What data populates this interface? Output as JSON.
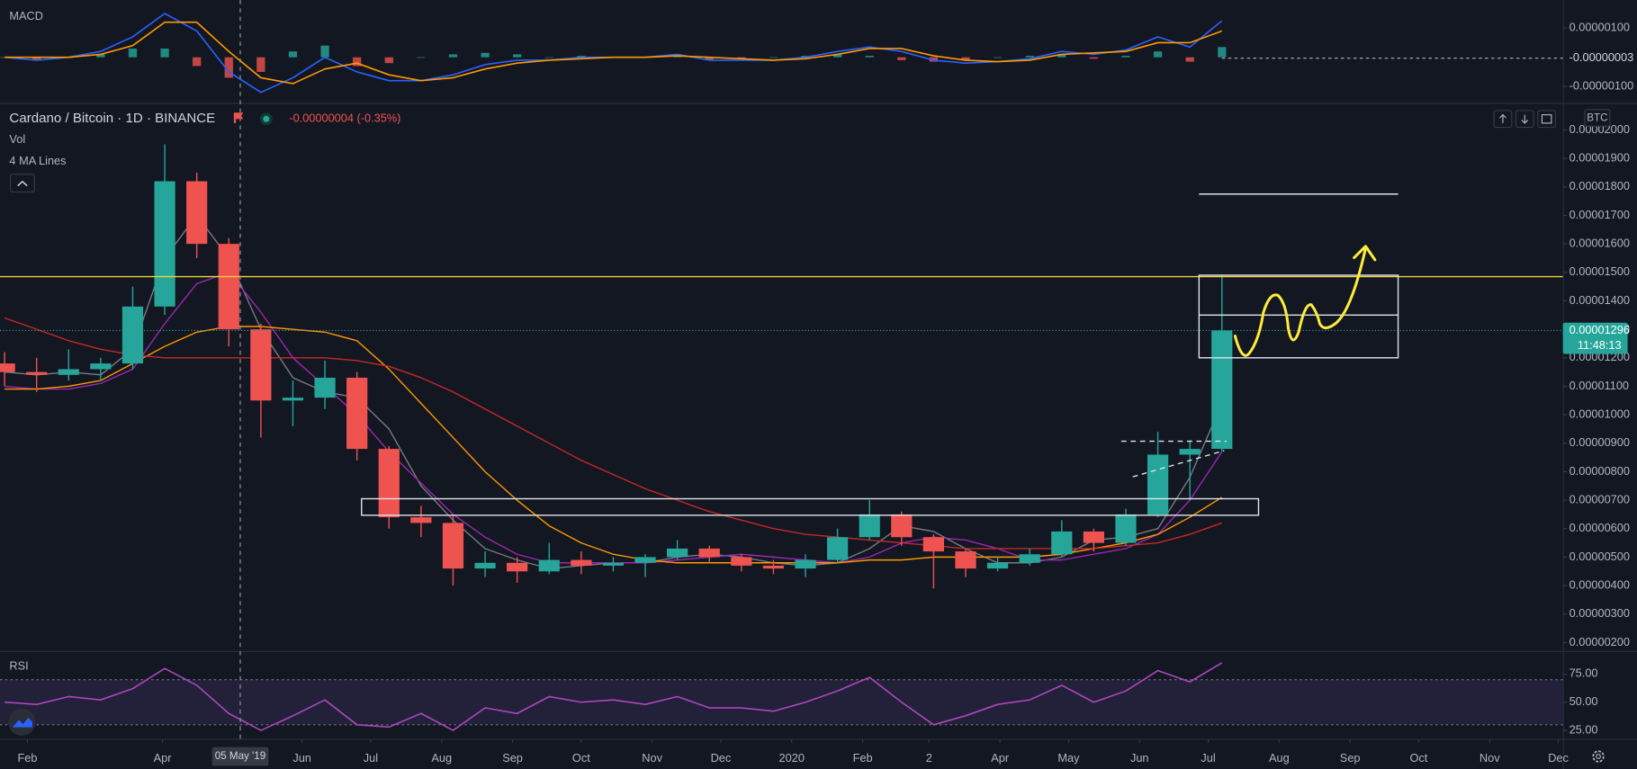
{
  "chart_data": [
    {
      "type": "line",
      "title": "MACD",
      "x": [
        -10,
        4,
        18,
        32,
        46,
        60,
        74,
        88,
        102,
        116,
        130,
        144,
        158,
        172,
        186,
        200,
        214,
        228,
        242,
        256,
        270,
        284,
        298,
        312,
        326,
        340,
        354,
        368,
        382,
        396,
        410,
        424,
        438,
        452,
        466,
        480,
        494,
        508,
        522
      ],
      "series": [
        {
          "color": "#2962ff",
          "values": [
            0,
            -1e-07,
            0,
            2e-07,
            7e-07,
            1.5e-06,
            9e-07,
            -5e-07,
            -1.2e-06,
            -7e-07,
            0,
            -5e-07,
            -8e-07,
            -8e-07,
            -6e-07,
            -2.5e-07,
            -1e-07,
            -1e-07,
            0,
            0,
            0,
            1e-07,
            -1e-07,
            -1e-07,
            -1e-07,
            0,
            2e-07,
            3.5e-07,
            2e-07,
            -1e-07,
            -2e-07,
            -1.5e-07,
            -5e-08,
            2e-07,
            1e-07,
            2.5e-07,
            7e-07,
            3.5e-07,
            1.25e-06
          ]
        },
        {
          "color": "#ff9800",
          "values": [
            0,
            0,
            0,
            1e-07,
            4e-07,
            1.2e-06,
            1.2e-06,
            2e-07,
            -7e-07,
            -9e-07,
            -4e-07,
            -2e-07,
            -6e-07,
            -8e-07,
            -7e-07,
            -4e-07,
            -2e-07,
            -1e-07,
            -5e-08,
            0,
            0,
            5e-08,
            0,
            -5e-08,
            -1e-07,
            -5e-08,
            1e-07,
            3e-07,
            3e-07,
            5e-08,
            -1e-07,
            -1.5e-07,
            -1e-07,
            1e-07,
            1.5e-07,
            2e-07,
            5e-07,
            5e-07,
            9e-07
          ]
        }
      ],
      "histogram": {
        "up_color": "#26a69a",
        "down_color": "#ef5350",
        "values": [
          0,
          -1e-07,
          0,
          1e-07,
          3e-07,
          3e-07,
          -3e-07,
          -7e-07,
          -5e-07,
          2e-07,
          4e-07,
          -3e-07,
          -2e-07,
          0,
          1e-07,
          1.5e-07,
          1e-07,
          0,
          5e-08,
          0,
          0,
          5e-08,
          -1e-07,
          -5e-08,
          0,
          5e-08,
          1e-07,
          5e-08,
          -1e-07,
          -1.5e-07,
          -1e-07,
          0,
          5e-08,
          1e-07,
          -5e-08,
          5e-08,
          2e-07,
          -1.5e-07,
          3.5e-07
        ]
      },
      "ylim": [
        -1.54e-06,
        1.96e-06
      ],
      "yticks": [
        {
          "value": 1e-06,
          "label": "0.00000100"
        },
        {
          "value": -1e-06,
          "label": "-0.00000100"
        }
      ],
      "last_label": {
        "value": -3e-08,
        "label": "-0.00000003"
      }
    },
    {
      "type": "candlestick",
      "title": "Cardano / Bitcoin · 1D · BINANCE",
      "change_label": "-0.00000004 (-0.35%)",
      "volume_label": "Vol",
      "ma_label": "4 MA Lines",
      "currency": "BTC",
      "last_price": 1.296e-05,
      "countdown": "11:48:13",
      "up_color": "#26a69a",
      "down_color": "#ef5350",
      "x": [
        -10,
        4,
        18,
        32,
        46,
        60,
        74,
        88,
        102,
        116,
        130,
        144,
        158,
        172,
        186,
        200,
        214,
        228,
        242,
        256,
        270,
        284,
        298,
        312,
        326,
        340,
        354,
        368,
        382,
        396,
        410,
        424,
        438,
        452,
        466,
        480,
        494,
        508,
        522
      ],
      "open": [
        1.18e-05,
        1.15e-05,
        1.14e-05,
        1.16e-05,
        1.18e-05,
        1.38e-05,
        1.82e-05,
        1.6e-05,
        1.3e-05,
        1.05e-05,
        1.06e-05,
        1.13e-05,
        8.8e-06,
        6.4e-06,
        6.2e-06,
        4.6e-06,
        4.8e-06,
        4.5e-06,
        4.9e-06,
        4.7e-06,
        4.8e-06,
        5e-06,
        5.3e-06,
        5e-06,
        4.7e-06,
        4.6e-06,
        4.9e-06,
        5.7e-06,
        6.5e-06,
        5.7e-06,
        5.2e-06,
        4.6e-06,
        4.8e-06,
        5.1e-06,
        5.9e-06,
        5.5e-06,
        6.5e-06,
        8.6e-06,
        8.8e-06
      ],
      "high": [
        1.22e-05,
        1.2e-05,
        1.23e-05,
        1.2e-05,
        1.45e-05,
        1.95e-05,
        1.85e-05,
        1.62e-05,
        1.32e-05,
        1.12e-05,
        1.19e-05,
        1.15e-05,
        8.9e-06,
        6.8e-06,
        6.5e-06,
        5.2e-06,
        5e-06,
        5.5e-06,
        5.2e-06,
        5e-06,
        5.1e-06,
        5.6e-06,
        5.4e-06,
        5.1e-06,
        4.9e-06,
        5.1e-06,
        6e-06,
        7e-06,
        6.6e-06,
        5.8e-06,
        5.3e-06,
        5e-06,
        5.3e-06,
        6.3e-06,
        6e-06,
        6.7e-06,
        9.4e-06,
        9.1e-06,
        1.49e-05
      ],
      "low": [
        1.1e-05,
        1.08e-05,
        1.12e-05,
        1.12e-05,
        1.16e-05,
        1.35e-05,
        1.55e-05,
        1.24e-05,
        9.2e-06,
        9.6e-06,
        1.02e-05,
        8.4e-06,
        6e-06,
        5.7e-06,
        4e-06,
        4.3e-06,
        4.1e-06,
        4.4e-06,
        4.4e-06,
        4.5e-06,
        4.3e-06,
        4.9e-06,
        4.8e-06,
        4.5e-06,
        4.4e-06,
        4.3e-06,
        4.8e-06,
        5.6e-06,
        5.4e-06,
        3.9e-06,
        4.3e-06,
        4.5e-06,
        4.7e-06,
        5e-06,
        5.2e-06,
        5.4e-06,
        6.4e-06,
        7e-06,
        8.7e-06
      ],
      "close": [
        1.15e-05,
        1.14e-05,
        1.16e-05,
        1.18e-05,
        1.38e-05,
        1.82e-05,
        1.6e-05,
        1.3e-05,
        1.05e-05,
        1.06e-05,
        1.13e-05,
        8.8e-06,
        6.4e-06,
        6.2e-06,
        4.6e-06,
        4.8e-06,
        4.5e-06,
        4.9e-06,
        4.7e-06,
        4.8e-06,
        5e-06,
        5.3e-06,
        5e-06,
        4.7e-06,
        4.6e-06,
        4.9e-06,
        5.7e-06,
        6.5e-06,
        5.7e-06,
        5.2e-06,
        4.6e-06,
        4.8e-06,
        5.1e-06,
        5.9e-06,
        5.5e-06,
        6.5e-06,
        8.6e-06,
        8.8e-06,
        1.296e-05
      ],
      "ma_series": [
        {
          "color": "#787b86",
          "values": [
            1.15e-05,
            1.14e-05,
            1.15e-05,
            1.14e-05,
            1.23e-05,
            1.55e-05,
            1.7e-05,
            1.55e-05,
            1.3e-05,
            1.13e-05,
            1.08e-05,
            1.06e-05,
            9.5e-06,
            7.5e-06,
            6.3e-06,
            5.3e-06,
            4.9e-06,
            4.6e-06,
            4.7e-06,
            4.8e-06,
            4.8e-06,
            5e-06,
            5.1e-06,
            5e-06,
            4.8e-06,
            4.7e-06,
            4.8e-06,
            5.3e-06,
            6.1e-06,
            5.9e-06,
            5.3e-06,
            4.8e-06,
            4.8e-06,
            5e-06,
            5.6e-06,
            5.7e-06,
            6e-06,
            7.8e-06,
            1.04e-05
          ]
        },
        {
          "color": "#9c27b0",
          "values": [
            1.1e-05,
            1.09e-05,
            1.09e-05,
            1.11e-05,
            1.16e-05,
            1.32e-05,
            1.46e-05,
            1.5e-05,
            1.36e-05,
            1.2e-05,
            1.1e-05,
            1e-05,
            8.7e-06,
            7.6e-06,
            6.5e-06,
            5.7e-06,
            5.1e-06,
            4.8e-06,
            4.8e-06,
            4.8e-06,
            4.8e-06,
            4.9e-06,
            5e-06,
            5.1e-06,
            5e-06,
            4.9e-06,
            4.8e-06,
            5e-06,
            5.5e-06,
            5.7e-06,
            5.6e-06,
            5.3e-06,
            4.9e-06,
            4.9e-06,
            5.1e-06,
            5.3e-06,
            5.8e-06,
            7e-06,
            8.7e-06
          ]
        },
        {
          "color": "#ff9800",
          "values": [
            1.09e-05,
            1.09e-05,
            1.1e-05,
            1.12e-05,
            1.18e-05,
            1.24e-05,
            1.29e-05,
            1.31e-05,
            1.31e-05,
            1.3e-05,
            1.29e-05,
            1.26e-05,
            1.16e-05,
            1.04e-05,
            9.2e-06,
            8e-06,
            7e-06,
            6.1e-06,
            5.5e-06,
            5.1e-06,
            4.9e-06,
            4.8e-06,
            4.8e-06,
            4.8e-06,
            4.8e-06,
            4.8e-06,
            4.8e-06,
            4.9e-06,
            4.9e-06,
            5e-06,
            5e-06,
            5e-06,
            5e-06,
            5.1e-06,
            5.3e-06,
            5.5e-06,
            5.8e-06,
            6.4e-06,
            7.1e-06
          ]
        },
        {
          "color": "#c62828",
          "values": [
            1.34e-05,
            1.3e-05,
            1.26e-05,
            1.23e-05,
            1.21e-05,
            1.2e-05,
            1.2e-05,
            1.2e-05,
            1.2e-05,
            1.2e-05,
            1.2e-05,
            1.19e-05,
            1.17e-05,
            1.13e-05,
            1.08e-05,
            1.02e-05,
            9.6e-06,
            9e-06,
            8.4e-06,
            7.9e-06,
            7.4e-06,
            7e-06,
            6.6e-06,
            6.3e-06,
            6e-06,
            5.8e-06,
            5.7e-06,
            5.6e-06,
            5.5e-06,
            5.4e-06,
            5.3e-06,
            5.3e-06,
            5.3e-06,
            5.3e-06,
            5.3e-06,
            5.4e-06,
            5.5e-06,
            5.8e-06,
            6.2e-06
          ]
        }
      ],
      "hlines": [
        {
          "value": 1.485e-05,
          "color": "#f0d43a"
        }
      ],
      "boxes": [
        {
          "x": [
            146,
            538
          ],
          "y": [
            6.47e-06,
            7.05e-06
          ]
        },
        {
          "x": [
            512,
            599
          ],
          "y": [
            1.2e-05,
            1.49e-05
          ]
        }
      ],
      "segments": [
        {
          "x": [
            512,
            599
          ],
          "y": [
            1.35e-05,
            1.35e-05
          ],
          "dashed": false
        },
        {
          "x": [
            512,
            599
          ],
          "y": [
            1.775e-05,
            1.775e-05
          ],
          "dashed": false
        },
        {
          "x": [
            478,
            524
          ],
          "y": [
            9.07e-06,
            9.07e-06
          ],
          "dashed": true
        },
        {
          "x": [
            483,
            523
          ],
          "y": [
            7.82e-06,
            8.74e-06
          ],
          "dashed": true
        }
      ],
      "ylim": [
        1.7e-06,
        2.09e-05
      ],
      "yticks": [
        {
          "value": 2e-06,
          "label": "0.00000200"
        },
        {
          "value": 3e-06,
          "label": "0.00000300"
        },
        {
          "value": 4e-06,
          "label": "0.00000400"
        },
        {
          "value": 5e-06,
          "label": "0.00000500"
        },
        {
          "value": 6e-06,
          "label": "0.00000600"
        },
        {
          "value": 7e-06,
          "label": "0.00000700"
        },
        {
          "value": 8e-06,
          "label": "0.00000800"
        },
        {
          "value": 9e-06,
          "label": "0.00000900"
        },
        {
          "value": 1e-05,
          "label": "0.00001000"
        },
        {
          "value": 1.1e-05,
          "label": "0.00001100"
        },
        {
          "value": 1.2e-05,
          "label": "0.00001200"
        },
        {
          "value": 1.3e-05,
          "label": "0.00001300"
        },
        {
          "value": 1.4e-05,
          "label": "0.00001400"
        },
        {
          "value": 1.5e-05,
          "label": "0.00001500"
        },
        {
          "value": 1.6e-05,
          "label": "0.00001600"
        },
        {
          "value": 1.7e-05,
          "label": "0.00001700"
        },
        {
          "value": 1.8e-05,
          "label": "0.00001800"
        },
        {
          "value": 1.9e-05,
          "label": "0.00001900"
        },
        {
          "value": 2e-05,
          "label": "0.00002000"
        }
      ],
      "xlim": [
        -12,
        671
      ],
      "xticks": [
        {
          "value": 0,
          "label": "Feb"
        },
        {
          "value": 59,
          "label": "Apr"
        },
        {
          "value": 120,
          "label": "Jun"
        },
        {
          "value": 150,
          "label": "Jul"
        },
        {
          "value": 181,
          "label": "Aug"
        },
        {
          "value": 212,
          "label": "Sep"
        },
        {
          "value": 242,
          "label": "Oct"
        },
        {
          "value": 273,
          "label": "Nov"
        },
        {
          "value": 303,
          "label": "Dec"
        },
        {
          "value": 334,
          "label": "2020"
        },
        {
          "value": 365,
          "label": "Feb"
        },
        {
          "value": 394,
          "label": "2"
        },
        {
          "value": 425,
          "label": "Apr"
        },
        {
          "value": 455,
          "label": "May"
        },
        {
          "value": 486,
          "label": "Jun"
        },
        {
          "value": 516,
          "label": "Jul"
        },
        {
          "value": 547,
          "label": "Aug"
        },
        {
          "value": 578,
          "label": "Sep"
        },
        {
          "value": 608,
          "label": "Oct"
        },
        {
          "value": 639,
          "label": "Nov"
        },
        {
          "value": 669,
          "label": "Dec"
        }
      ],
      "crosshair": {
        "x": 93,
        "label": "05 May '19"
      }
    },
    {
      "type": "line",
      "title": "RSI",
      "x": [
        -10,
        4,
        18,
        32,
        46,
        60,
        74,
        88,
        102,
        116,
        130,
        144,
        158,
        172,
        186,
        200,
        214,
        228,
        242,
        256,
        270,
        284,
        298,
        312,
        326,
        340,
        354,
        368,
        382,
        396,
        410,
        424,
        438,
        452,
        466,
        480,
        494,
        508,
        522
      ],
      "series": [
        {
          "color": "#ab47bc",
          "values": [
            50,
            48,
            55,
            52,
            62,
            80,
            65,
            40,
            25,
            38,
            52,
            30,
            28,
            40,
            25,
            45,
            40,
            55,
            50,
            52,
            48,
            55,
            45,
            45,
            42,
            50,
            60,
            72,
            50,
            30,
            38,
            48,
            52,
            65,
            50,
            60,
            78,
            68,
            85
          ]
        }
      ],
      "band": [
        30,
        70
      ],
      "band_color": "#7e57c2",
      "ylim": [
        17.6,
        94.4
      ],
      "yticks": [
        {
          "value": 75,
          "label": "75.00"
        },
        {
          "value": 50,
          "label": "50.00"
        },
        {
          "value": 25,
          "label": "25.00"
        }
      ]
    }
  ]
}
